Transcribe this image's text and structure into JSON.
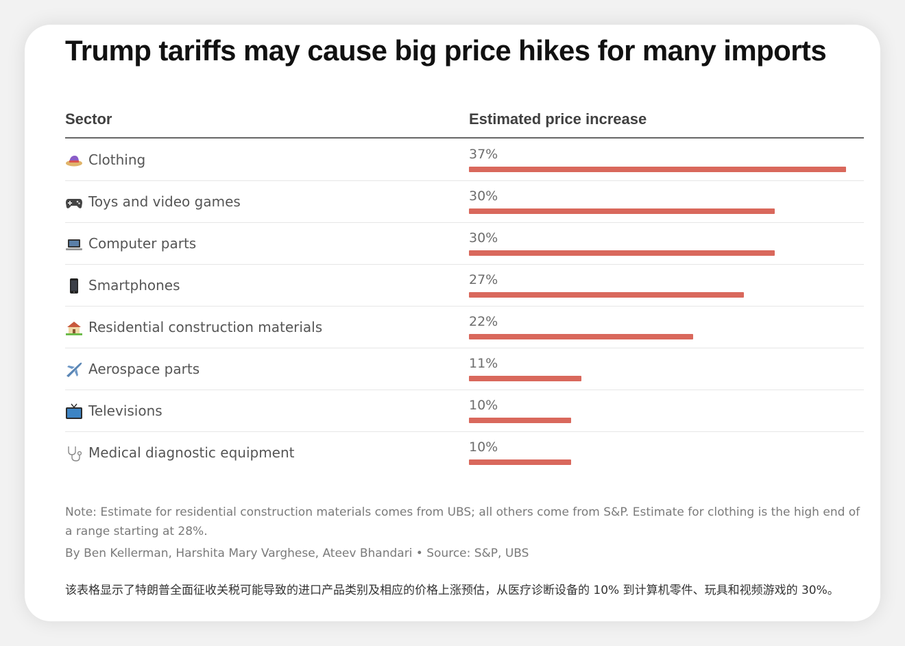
{
  "title": "Trump tariffs may cause big price hikes for many imports",
  "table": {
    "col_sector": "Sector",
    "col_value": "Estimated price increase"
  },
  "chart_data": {
    "type": "bar",
    "orientation": "horizontal",
    "title": "Trump tariffs may cause big price hikes for many imports",
    "xlabel": "",
    "ylabel": "",
    "bar_color": "#d9685c",
    "categories": [
      "Clothing",
      "Toys and video games",
      "Computer parts",
      "Smartphones",
      "Residential construction materials",
      "Aerospace parts",
      "Televisions",
      "Medical diagnostic equipment"
    ],
    "values": [
      37,
      30,
      30,
      27,
      22,
      11,
      10,
      10
    ],
    "value_labels": [
      "37%",
      "30%",
      "30%",
      "27%",
      "22%",
      "11%",
      "10%",
      "10%"
    ],
    "icons": [
      "hat-icon",
      "game-controller-icon",
      "laptop-icon",
      "smartphone-icon",
      "house-icon",
      "airplane-icon",
      "television-icon",
      "stethoscope-icon"
    ],
    "xlim": [
      0,
      37
    ]
  },
  "note": "Note: Estimate for residential construction materials comes from UBS; all others come from S&P. Estimate for clothing is the high end of a range starting at 28%.",
  "byline": "By Ben Kellerman, Harshita Mary Varghese, Ateev Bhandari • Source: S&P, UBS",
  "caption": "该表格显示了特朗普全面征收关税可能导致的进口产品类别及相应的价格上涨预估，从医疗诊断设备的 10% 到计算机零件、玩具和视频游戏的 30%。"
}
